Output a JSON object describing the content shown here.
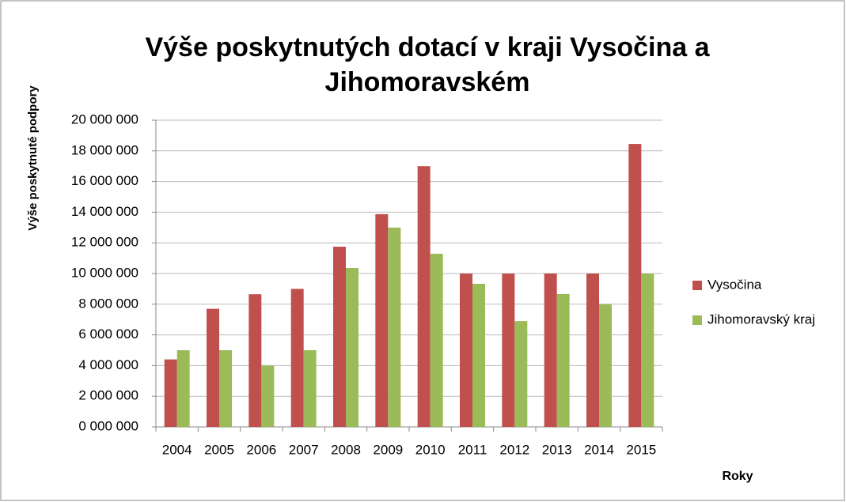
{
  "chart_data": {
    "type": "bar",
    "title": "Výše poskytnutých dotací v kraji Vysočina a Jihomoravském",
    "y_label": "Výše poskytnuté podpory",
    "x_label": "Roky",
    "categories": [
      "2004",
      "2005",
      "2006",
      "2007",
      "2008",
      "2009",
      "2010",
      "2011",
      "2012",
      "2013",
      "2014",
      "2015"
    ],
    "series": [
      {
        "name": "Vysočina",
        "color": "#c0504d",
        "values": [
          4400000,
          7700000,
          8650000,
          9000000,
          11750000,
          13870000,
          17000000,
          10000000,
          10000000,
          10000000,
          10000000,
          18450000
        ]
      },
      {
        "name": "Jihomoravský kraj",
        "color": "#9bbb59",
        "values": [
          5000000,
          5000000,
          4000000,
          5000000,
          10360000,
          13000000,
          11290000,
          9330000,
          6900000,
          8660000,
          8000000,
          10000000
        ]
      }
    ],
    "ylim": [
      0,
      20000000
    ],
    "yticks": [
      {
        "value": 0,
        "label": "0 000 000"
      },
      {
        "value": 2000000,
        "label": "2 000 000"
      },
      {
        "value": 4000000,
        "label": "4 000 000"
      },
      {
        "value": 6000000,
        "label": "6 000 000"
      },
      {
        "value": 8000000,
        "label": "8 000 000"
      },
      {
        "value": 10000000,
        "label": "10 000 000"
      },
      {
        "value": 12000000,
        "label": "12 000 000"
      },
      {
        "value": 14000000,
        "label": "14 000 000"
      },
      {
        "value": 16000000,
        "label": "16 000 000"
      },
      {
        "value": 18000000,
        "label": "18 000 000"
      },
      {
        "value": 20000000,
        "label": "20 000 000"
      }
    ],
    "grid": true,
    "legend": "right"
  }
}
